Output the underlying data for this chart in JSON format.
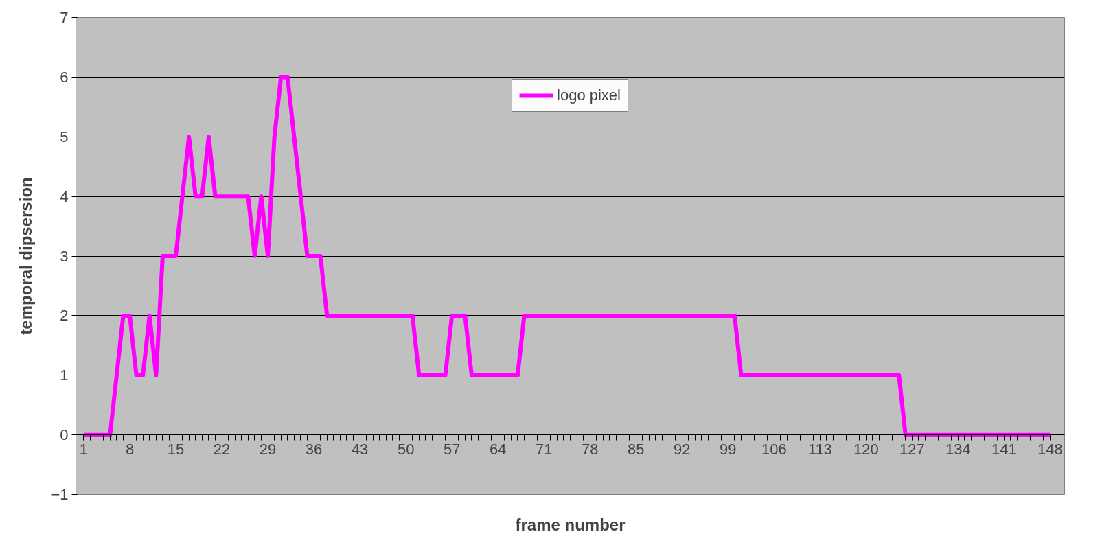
{
  "chart_data": {
    "type": "line",
    "xlabel": "frame number",
    "ylabel": "temporal dipsersion",
    "categories": [
      "1",
      null,
      null,
      null,
      null,
      null,
      null,
      "8",
      null,
      null,
      null,
      null,
      null,
      null,
      "15",
      null,
      null,
      null,
      null,
      null,
      null,
      "22",
      null,
      null,
      null,
      null,
      null,
      null,
      "29",
      null,
      null,
      null,
      null,
      null,
      null,
      "36",
      null,
      null,
      null,
      null,
      null,
      null,
      "43",
      null,
      null,
      null,
      null,
      null,
      null,
      "50",
      null,
      null,
      null,
      null,
      null,
      null,
      "57",
      null,
      null,
      null,
      null,
      null,
      null,
      "64",
      null,
      null,
      null,
      null,
      null,
      null,
      "71",
      null,
      null,
      null,
      null,
      null,
      null,
      "78",
      null,
      null,
      null,
      null,
      null,
      null,
      "85",
      null,
      null,
      null,
      null,
      null,
      null,
      "92",
      null,
      null,
      null,
      null,
      null,
      null,
      "99",
      null,
      null,
      null,
      null,
      null,
      null,
      "106",
      null,
      null,
      null,
      null,
      null,
      null,
      "113",
      null,
      null,
      null,
      null,
      null,
      null,
      "120",
      null,
      null,
      null,
      null,
      null,
      null,
      "127",
      null,
      null,
      null,
      null,
      null,
      null,
      "134",
      null,
      null,
      null,
      null,
      null,
      null,
      "141",
      null,
      null,
      null,
      null,
      null,
      null,
      "148"
    ],
    "series": [
      {
        "name": "logo pixel",
        "color": "#ff00ff",
        "values": [
          0,
          0,
          0,
          0,
          0,
          1,
          2,
          2,
          1,
          1,
          2,
          1,
          3,
          3,
          3,
          4,
          5,
          4,
          4,
          5,
          4,
          4,
          4,
          4,
          4,
          4,
          3,
          4,
          3,
          5,
          6,
          6,
          5,
          4,
          3,
          3,
          3,
          2,
          2,
          2,
          2,
          2,
          2,
          2,
          2,
          2,
          2,
          2,
          2,
          2,
          2,
          1,
          1,
          1,
          1,
          1,
          2,
          2,
          2,
          1,
          1,
          1,
          1,
          1,
          1,
          1,
          1,
          2,
          2,
          2,
          2,
          2,
          2,
          2,
          2,
          2,
          2,
          2,
          2,
          2,
          2,
          2,
          2,
          2,
          2,
          2,
          2,
          2,
          2,
          2,
          2,
          2,
          2,
          2,
          2,
          2,
          2,
          2,
          2,
          2,
          1,
          1,
          1,
          1,
          1,
          1,
          1,
          1,
          1,
          1,
          1,
          1,
          1,
          1,
          1,
          1,
          1,
          1,
          1,
          1,
          1,
          1,
          1,
          1,
          1,
          0,
          0,
          0,
          0,
          0,
          0,
          0,
          0,
          0,
          0,
          0,
          0,
          0,
          0,
          0,
          0,
          0,
          0,
          0,
          0,
          0,
          0,
          0
        ]
      }
    ],
    "ylim": [
      -1,
      7
    ],
    "yticks": [
      -1,
      0,
      1,
      2,
      3,
      4,
      5,
      6,
      7
    ],
    "grid": "y",
    "legend": "top",
    "marker": "none",
    "line_style": "solid"
  }
}
